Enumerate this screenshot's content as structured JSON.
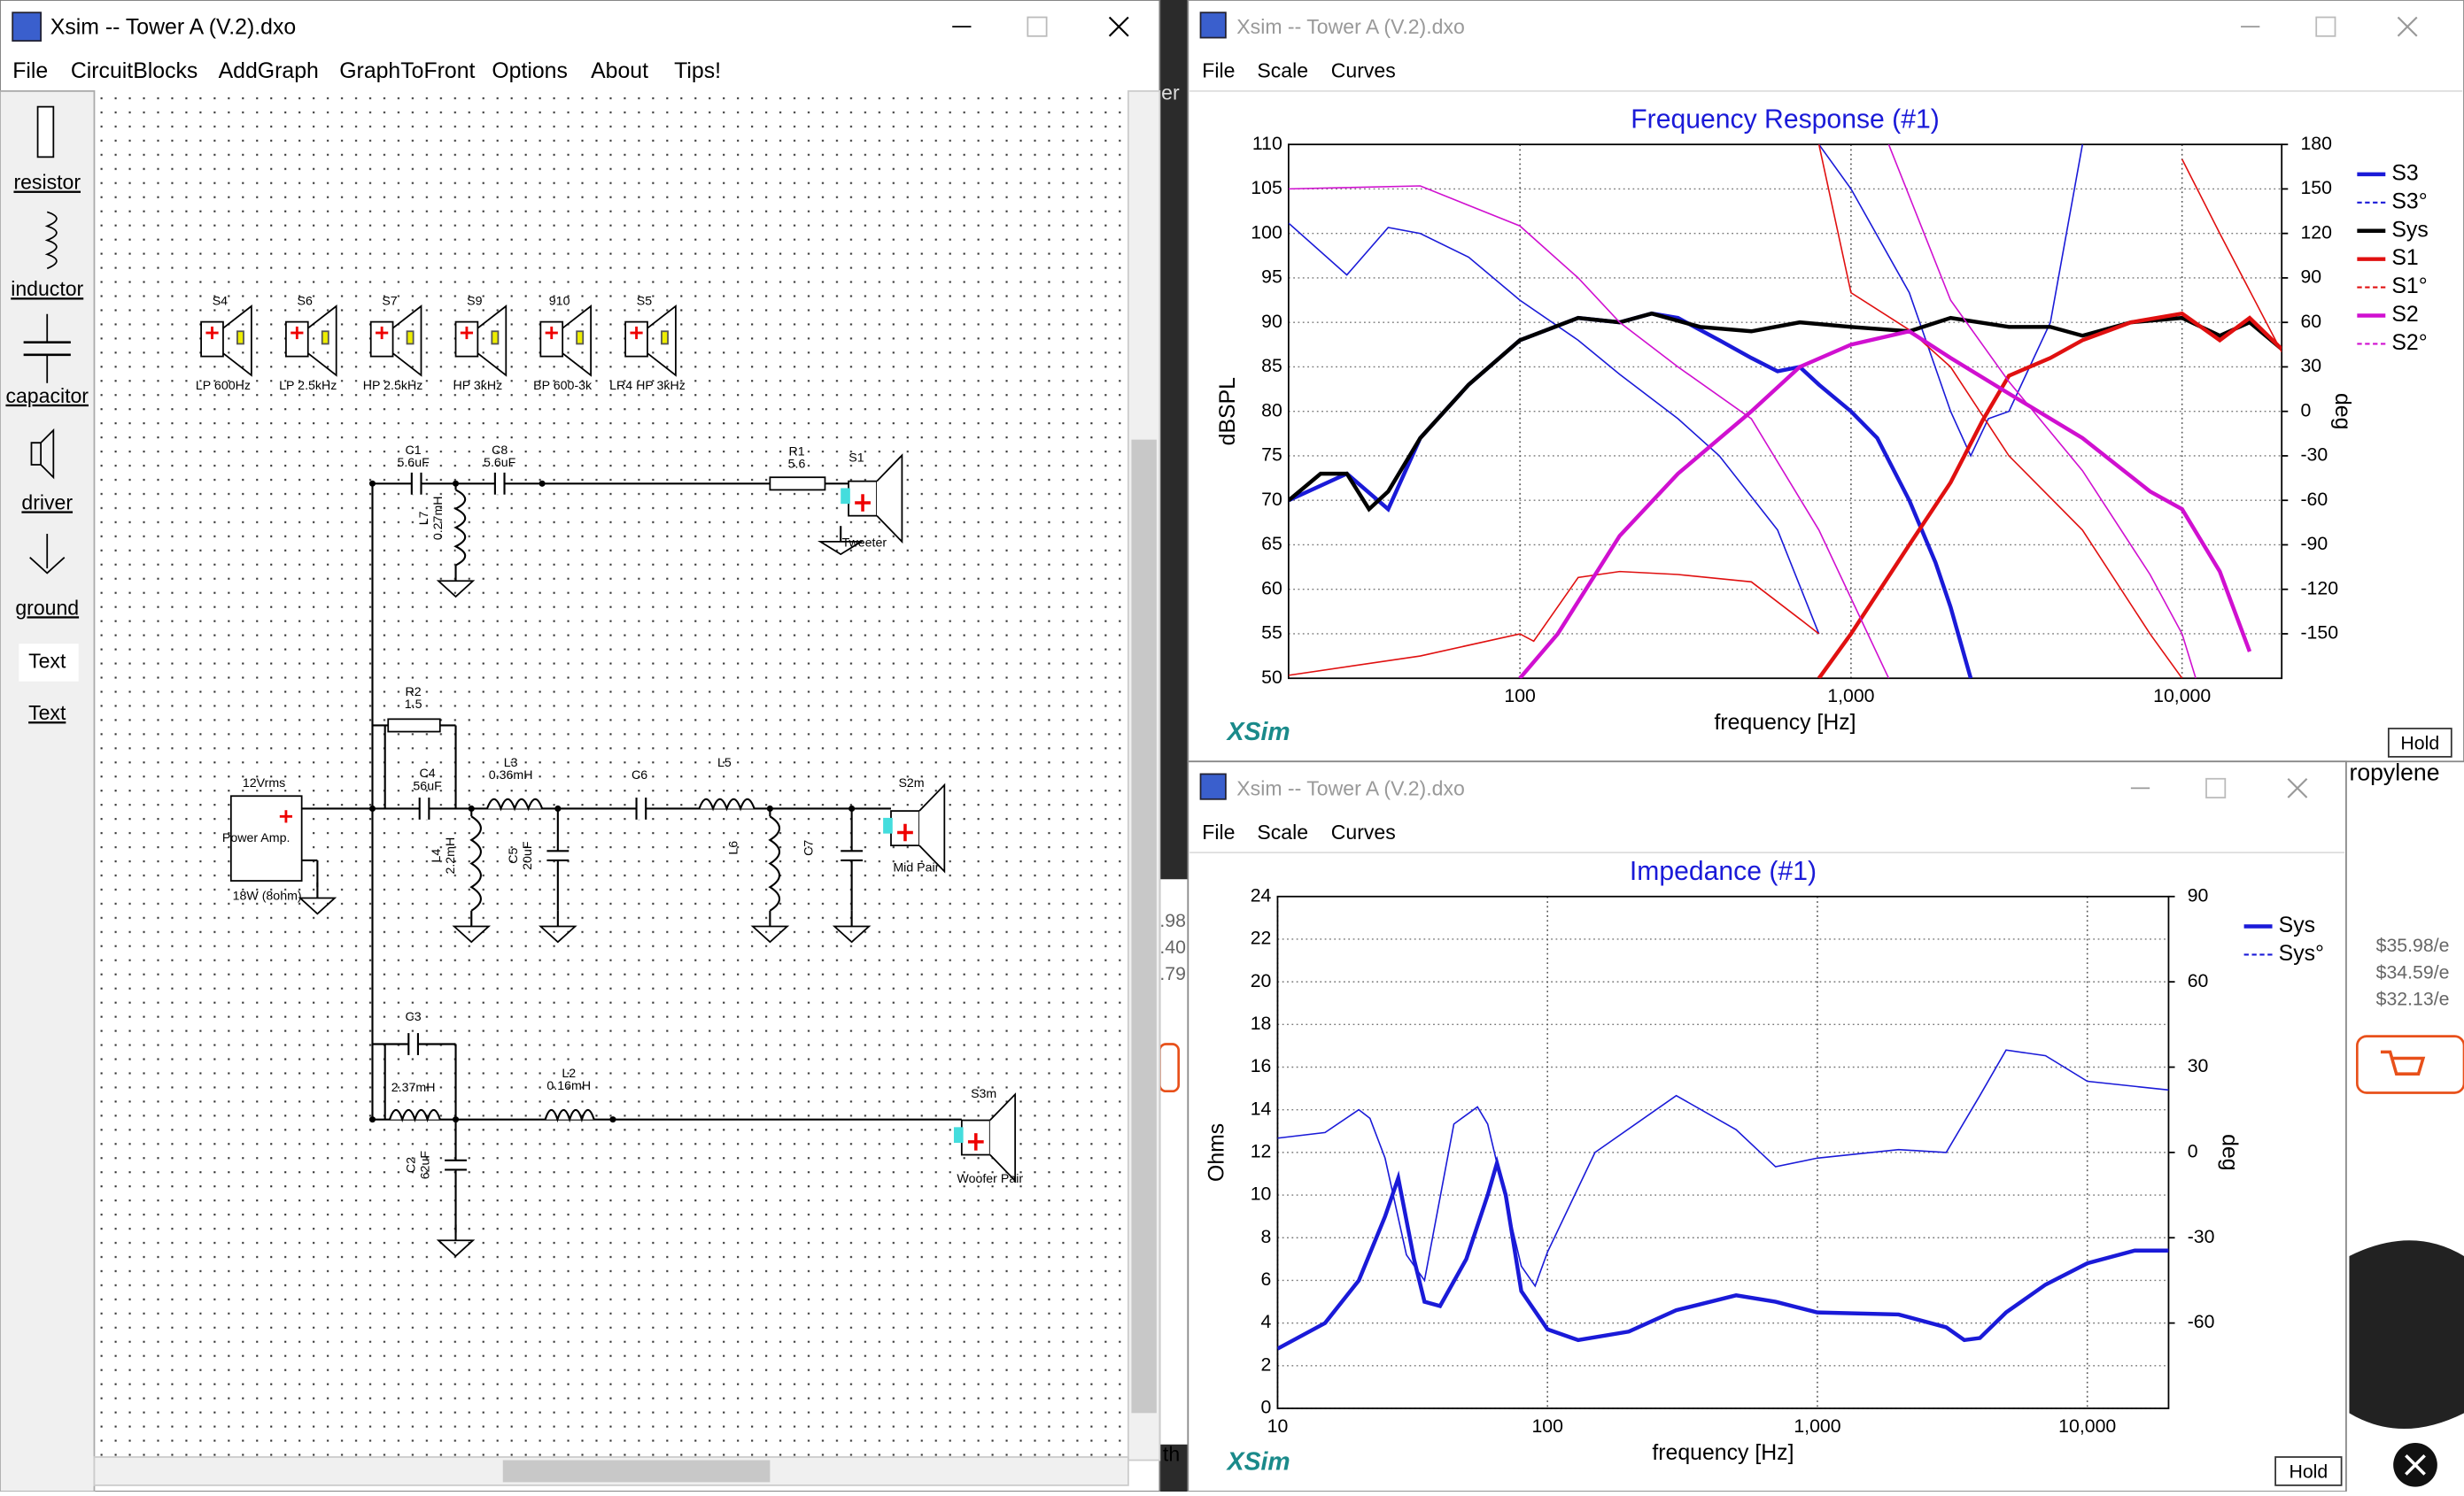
{
  "schematic": {
    "title": "Xsim -- Tower A (V.2).dxo",
    "menu": [
      "File",
      "CircuitBlocks",
      "AddGraph",
      "GraphToFront",
      "Options",
      "About",
      "Tips!"
    ],
    "tools": [
      "resistor",
      "inductor",
      "capacitor",
      "driver",
      "ground",
      "Text",
      "Text"
    ],
    "blocks": [
      {
        "name": "S4",
        "label": "LP 600Hz"
      },
      {
        "name": "S6",
        "label": "LP 2.5kHz"
      },
      {
        "name": "S7",
        "label": "HP 2.5kHz"
      },
      {
        "name": "S9",
        "label": "HP 3kHz"
      },
      {
        "name": "910",
        "label": "BP 600-3k"
      },
      {
        "name": "S5",
        "label": "LR4 HP 3kHz"
      }
    ],
    "parts": [
      {
        "name": "C1",
        "value": "5.6uF"
      },
      {
        "name": "C8",
        "value": "5.6uF"
      },
      {
        "name": "L7",
        "value": "0.27mH"
      },
      {
        "name": "R1",
        "value": "5.6"
      },
      {
        "name": "R2",
        "value": "1.5"
      },
      {
        "name": "C4",
        "value": "56uF"
      },
      {
        "name": "L3",
        "value": "0.36mH"
      },
      {
        "name": "C6"
      },
      {
        "name": "L5"
      },
      {
        "name": "L4",
        "value": "2.2mH"
      },
      {
        "name": "C5",
        "value": "20uF"
      },
      {
        "name": "L6"
      },
      {
        "name": "C7"
      },
      {
        "name": "C3"
      },
      {
        "value": "2.37mH"
      },
      {
        "name": "L2",
        "value": "0.16mH"
      },
      {
        "name": "C2",
        "value": "62uF"
      }
    ],
    "drivers": [
      {
        "name": "S1",
        "label": "Tweeter"
      },
      {
        "name": "S2m",
        "label": "Mid Pair"
      },
      {
        "name": "S3m",
        "label": "Woofer Pair"
      }
    ],
    "amp": {
      "voltage": "12Vrms",
      "label": "Power Amp.",
      "power": "18W (8ohm)"
    }
  },
  "graph_windows": [
    {
      "title": "Xsim -- Tower A (V.2).dxo",
      "menu": [
        "File",
        "Scale",
        "Curves"
      ],
      "brand": "XSim",
      "hold": "Hold"
    },
    {
      "title": "Xsim -- Tower A (V.2).dxo",
      "menu": [
        "File",
        "Scale",
        "Curves"
      ],
      "brand": "XSim",
      "hold": "Hold"
    }
  ],
  "chart_data": [
    {
      "type": "line",
      "title": "Frequency Response (#1)",
      "x_label": "frequency [Hz]",
      "y_label": "dBSPL",
      "y2_label": "deg",
      "x_scale": "log",
      "xlim": [
        20,
        20000
      ],
      "xticks": [
        {
          "value": 100,
          "label": "100"
        },
        {
          "value": 1000,
          "label": "1,000"
        },
        {
          "value": 10000,
          "label": "10,000"
        }
      ],
      "ylim": [
        50,
        110
      ],
      "yticks": [
        50,
        55,
        60,
        65,
        70,
        75,
        80,
        85,
        90,
        95,
        100,
        105,
        110
      ],
      "y2lim": [
        -180,
        180
      ],
      "y2ticks": [
        -150,
        -120,
        -90,
        -60,
        -30,
        0,
        30,
        60,
        90,
        120,
        150,
        180
      ],
      "grid": true,
      "legend": "right",
      "series": [
        {
          "name": "S3",
          "color": "#1a1ad8",
          "width": 2.5,
          "x": [
            20,
            30,
            40,
            50,
            70,
            100,
            150,
            200,
            250,
            300,
            400,
            500,
            600,
            700,
            800,
            1000,
            1200,
            1500,
            1800,
            2000,
            2300
          ],
          "values": [
            70,
            73,
            69,
            77,
            83,
            88,
            90.5,
            90,
            91,
            90.5,
            88,
            86,
            84.5,
            85,
            83,
            80,
            77,
            70,
            63,
            58,
            50
          ]
        },
        {
          "name": "S3°",
          "color": "#1a1ad8",
          "width": 0.9,
          "dashed": true,
          "axis": "y2",
          "x": [
            20,
            30,
            40,
            50,
            70,
            100,
            150,
            200,
            300,
            400,
            600,
            800,
            800,
            800,
            1000,
            1500,
            2000,
            2300,
            2600,
            3000,
            4000,
            5000
          ],
          "values": [
            127,
            92,
            124,
            120,
            104,
            75,
            48,
            25,
            -5,
            -30,
            -80,
            -150,
            null,
            180,
            150,
            80,
            0,
            -30,
            -5,
            0,
            60,
            180
          ]
        },
        {
          "name": "Sys",
          "color": "#000000",
          "width": 2.5,
          "x": [
            20,
            25,
            30,
            35,
            40,
            50,
            70,
            100,
            150,
            200,
            250,
            350,
            500,
            700,
            1000,
            1500,
            2000,
            3000,
            4000,
            5000,
            7000,
            10000,
            13000,
            16000,
            20000
          ],
          "values": [
            70,
            73,
            73,
            69,
            71,
            77,
            83,
            88,
            90.5,
            90,
            91,
            89.5,
            89,
            90,
            89.5,
            89,
            90.5,
            89.5,
            89.5,
            88.5,
            90,
            90.5,
            88.5,
            90,
            87
          ]
        },
        {
          "name": "S1",
          "color": "#e01010",
          "width": 2.5,
          "x": [
            800,
            1000,
            1500,
            2000,
            2500,
            3000,
            4000,
            5000,
            7000,
            10000,
            13000,
            16000,
            20000
          ],
          "values": [
            50,
            55,
            65,
            72,
            79,
            84,
            86,
            88,
            90,
            91,
            88,
            90.5,
            87
          ]
        },
        {
          "name": "S1°",
          "color": "#e01010",
          "width": 0.9,
          "dashed": true,
          "axis": "y2",
          "x": [
            20,
            50,
            100,
            110,
            150,
            200,
            300,
            500,
            700,
            800,
            800,
            800,
            1000,
            1500,
            2000,
            3000,
            5000,
            8000,
            10000,
            10000,
            10000,
            13000,
            20000
          ],
          "values": [
            -178,
            -165,
            -150,
            -155,
            -112,
            -108,
            -110,
            -115,
            -140,
            -150,
            null,
            180,
            80,
            55,
            30,
            -30,
            -80,
            -150,
            -180,
            null,
            170,
            120,
            40
          ]
        },
        {
          "name": "S2",
          "color": "#d010d0",
          "width": 2.5,
          "x": [
            100,
            130,
            200,
            300,
            500,
            700,
            1000,
            1500,
            2000,
            3000,
            5000,
            8000,
            10000,
            13000,
            16000
          ],
          "values": [
            50,
            55,
            66,
            73,
            80,
            85,
            87.5,
            89,
            86,
            82,
            77,
            71,
            69,
            62,
            53
          ]
        },
        {
          "name": "S2°",
          "color": "#d010d0",
          "width": 0.9,
          "dashed": true,
          "axis": "y2",
          "x": [
            20,
            50,
            100,
            150,
            200,
            300,
            500,
            800,
            1300,
            1300,
            1300,
            2000,
            3000,
            5000,
            8000,
            10000,
            11000
          ],
          "values": [
            150,
            152,
            125,
            90,
            60,
            30,
            -5,
            -80,
            -180,
            null,
            180,
            75,
            20,
            -40,
            -110,
            -150,
            -180
          ]
        }
      ]
    },
    {
      "type": "line",
      "title": "Impedance (#1)",
      "x_label": "frequency [Hz]",
      "y_label": "Ohms",
      "y2_label": "deg",
      "x_scale": "log",
      "xlim": [
        10,
        20000
      ],
      "xticks": [
        {
          "value": 10,
          "label": "10"
        },
        {
          "value": 100,
          "label": "100"
        },
        {
          "value": 1000,
          "label": "1,000"
        },
        {
          "value": 10000,
          "label": "10,000"
        }
      ],
      "ylim": [
        0,
        24
      ],
      "yticks": [
        0,
        2,
        4,
        6,
        8,
        10,
        12,
        14,
        16,
        18,
        20,
        22,
        24
      ],
      "y2lim": [
        -90,
        90
      ],
      "y2ticks": [
        -60,
        -30,
        0,
        30,
        60,
        90
      ],
      "grid": true,
      "legend": "right",
      "series": [
        {
          "name": "Sys",
          "color": "#1a1ad8",
          "width": 2.5,
          "x": [
            10,
            15,
            20,
            25,
            28,
            32,
            35,
            40,
            50,
            60,
            65,
            70,
            80,
            100,
            130,
            200,
            300,
            500,
            700,
            1000,
            2000,
            3000,
            3500,
            4000,
            5000,
            7000,
            10000,
            15000,
            20000
          ],
          "values": [
            2.8,
            4,
            6,
            9,
            10.8,
            7,
            5,
            4.8,
            7,
            10,
            11.5,
            10,
            5.5,
            3.7,
            3.2,
            3.6,
            4.6,
            5.3,
            5,
            4.5,
            4.4,
            3.8,
            3.2,
            3.3,
            4.5,
            5.8,
            6.8,
            7.4,
            7.4
          ]
        },
        {
          "name": "Sys°",
          "color": "#1a1ad8",
          "width": 0.9,
          "dashed": true,
          "axis": "y2",
          "x": [
            10,
            15,
            20,
            22,
            25,
            30,
            35,
            45,
            55,
            60,
            80,
            90,
            100,
            150,
            300,
            500,
            700,
            1000,
            2000,
            3000,
            4000,
            5000,
            7000,
            10000,
            20000
          ],
          "values": [
            5,
            7,
            15,
            12,
            -2,
            -36,
            -45,
            10,
            16,
            10,
            -40,
            -47,
            -35,
            0,
            20,
            8,
            -5,
            -2,
            1,
            0,
            20,
            36,
            34,
            25,
            22
          ]
        }
      ]
    }
  ],
  "background": [
    "er",
    "ropylene",
    "$35.98/e",
    "$34.59/e",
    "$32.13/e",
    ".98",
    ".40",
    ".79",
    "th"
  ]
}
